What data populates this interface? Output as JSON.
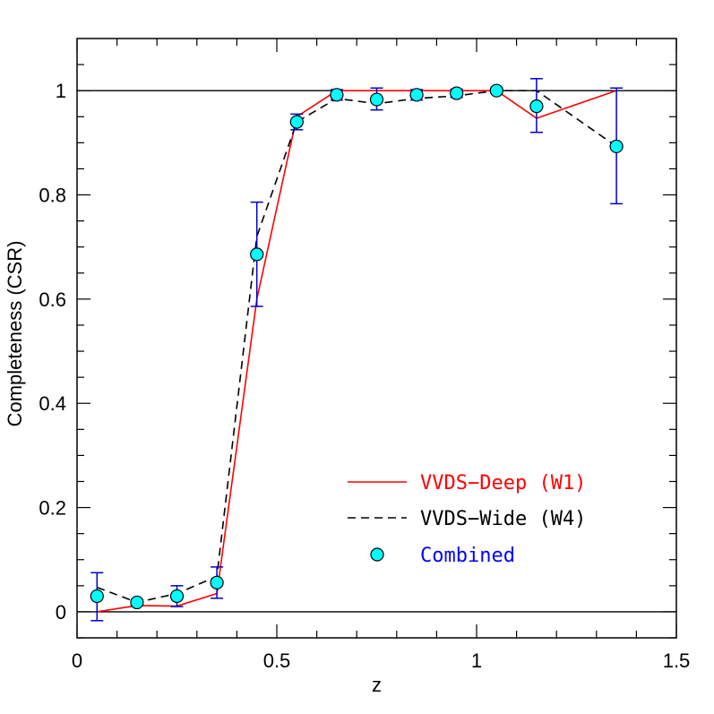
{
  "chart_data": {
    "type": "line",
    "title": "",
    "xlabel": "z",
    "ylabel": "Completeness (CSR)",
    "xlim": [
      0,
      1.5
    ],
    "ylim": [
      -0.05,
      1.1
    ],
    "x_ticks": [
      0,
      0.5,
      1,
      1.5
    ],
    "x_tick_labels": [
      "0",
      "0.5",
      "1",
      "1.5"
    ],
    "y_ticks": [
      0,
      0.2,
      0.4,
      0.6,
      0.8,
      1
    ],
    "y_tick_labels": [
      "0",
      "0.2",
      "0.4",
      "0.6",
      "0.8",
      "1"
    ],
    "reference_lines": [
      0,
      1
    ],
    "legend_position": "bottom-right",
    "series": [
      {
        "name": "VVDS−Deep (W1)",
        "style": "solid",
        "color": "#ff0000",
        "x": [
          0.05,
          0.15,
          0.25,
          0.35,
          0.45,
          0.55,
          0.65,
          0.75,
          0.85,
          0.95,
          1.05,
          1.15,
          1.35
        ],
        "y": [
          0.0,
          0.012,
          0.011,
          0.035,
          0.6,
          0.95,
          1.0,
          1.0,
          1.0,
          1.0,
          1.0,
          0.947,
          1.0
        ]
      },
      {
        "name": "VVDS−Wide (W4)",
        "style": "dashed",
        "color": "#000000",
        "x": [
          0.05,
          0.15,
          0.25,
          0.35,
          0.45,
          0.55,
          0.65,
          0.75,
          0.85,
          0.95,
          1.05,
          1.15,
          1.35
        ],
        "y": [
          0.047,
          0.018,
          0.035,
          0.068,
          0.72,
          0.94,
          0.985,
          0.975,
          0.985,
          0.99,
          1.0,
          1.0,
          0.893
        ]
      },
      {
        "name": "Combined",
        "style": "points",
        "color": "#00ffff",
        "edge_color": "#000000",
        "error_color": "#0000cd",
        "label_color": "#0000ff",
        "x": [
          0.05,
          0.15,
          0.25,
          0.35,
          0.45,
          0.55,
          0.65,
          0.75,
          0.85,
          0.95,
          1.05,
          1.15,
          1.35
        ],
        "y": [
          0.03,
          0.018,
          0.03,
          0.056,
          0.686,
          0.94,
          0.992,
          0.983,
          0.992,
          0.995,
          1.0,
          0.97,
          0.893
        ],
        "err_lo": [
          0.047,
          0.005,
          0.02,
          0.03,
          0.1,
          0.015,
          0.01,
          0.02,
          0.01,
          0.008,
          0.005,
          0.05,
          0.11
        ],
        "err_hi": [
          0.045,
          0.005,
          0.02,
          0.03,
          0.1,
          0.015,
          0.01,
          0.022,
          0.01,
          0.008,
          0.005,
          0.053,
          0.112
        ]
      }
    ]
  }
}
